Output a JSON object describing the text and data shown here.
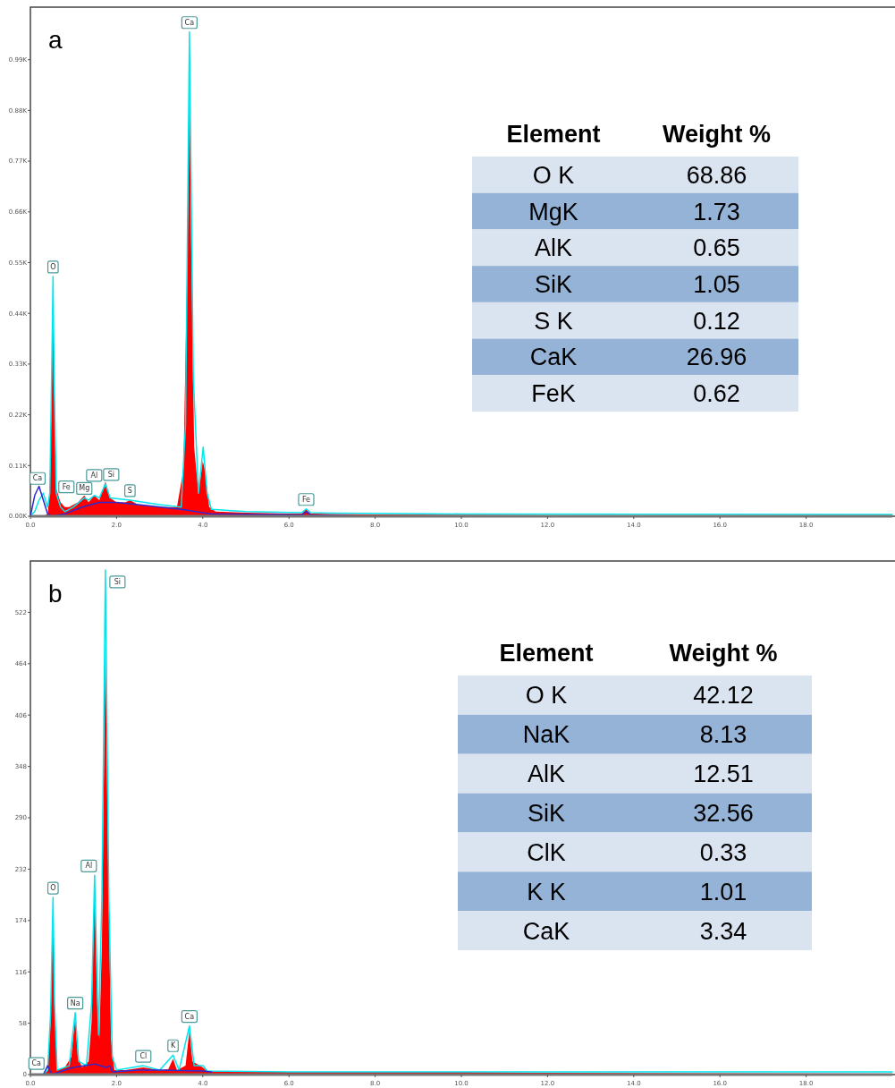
{
  "chart_data": [
    {
      "type": "area",
      "title": "a",
      "xlim": [
        0,
        20
      ],
      "ylim": [
        0,
        1.1
      ],
      "xticks": [
        {
          "value": 0,
          "label": "0.0"
        },
        {
          "value": 2,
          "label": "2.0"
        },
        {
          "value": 4,
          "label": "4.0"
        },
        {
          "value": 6,
          "label": "6.0"
        },
        {
          "value": 8,
          "label": "8.0"
        },
        {
          "value": 10,
          "label": "10.0"
        },
        {
          "value": 12,
          "label": "12.0"
        },
        {
          "value": 14,
          "label": "14.0"
        },
        {
          "value": 16,
          "label": "16.0"
        },
        {
          "value": 18,
          "label": "18.0"
        }
      ],
      "yticks": [
        {
          "value": 0,
          "label": "0.00K"
        },
        {
          "value": 0.11,
          "label": "0.11K"
        },
        {
          "value": 0.22,
          "label": "0.22K"
        },
        {
          "value": 0.33,
          "label": "0.33K"
        },
        {
          "value": 0.44,
          "label": "0.44K"
        },
        {
          "value": 0.55,
          "label": "0.55K"
        },
        {
          "value": 0.66,
          "label": "0.66K"
        },
        {
          "value": 0.77,
          "label": "0.77K"
        },
        {
          "value": 0.88,
          "label": "0.88K"
        },
        {
          "value": 0.99,
          "label": "0.99K"
        }
      ],
      "series": [
        {
          "type": "area",
          "color": "#ff0000",
          "x": [
            0,
            0.3,
            0.4,
            0.45,
            0.5,
            0.525,
            0.55,
            0.6,
            0.7,
            0.8,
            0.9,
            1.0,
            1.1,
            1.25,
            1.35,
            1.48,
            1.6,
            1.74,
            1.85,
            2.0,
            2.2,
            2.31,
            2.5,
            3.0,
            3.4,
            3.55,
            3.65,
            3.69,
            3.73,
            3.8,
            3.9,
            4.0,
            4.05,
            4.15,
            4.3,
            5.0,
            6.0,
            6.3,
            6.4,
            6.5,
            7.0,
            8.0,
            10,
            12,
            14,
            16,
            20
          ],
          "values": [
            0,
            0,
            0.005,
            0.05,
            0.3,
            0.49,
            0.3,
            0.06,
            0.03,
            0.02,
            0.02,
            0.025,
            0.03,
            0.045,
            0.03,
            0.045,
            0.035,
            0.075,
            0.04,
            0.03,
            0.03,
            0.035,
            0.025,
            0.02,
            0.02,
            0.1,
            0.6,
            0.95,
            0.6,
            0.15,
            0.05,
            0.12,
            0.1,
            0.02,
            0.01,
            0.008,
            0.006,
            0.006,
            0.015,
            0.006,
            0.005,
            0.004,
            0.003,
            0.002,
            0.001,
            0.001,
            0.001
          ]
        },
        {
          "type": "line",
          "color": "#00e5ee",
          "x": [
            0,
            0.1,
            0.2,
            0.3,
            0.4,
            0.45,
            0.5,
            0.525,
            0.55,
            0.6,
            0.7,
            0.8,
            1.0,
            1.25,
            1.35,
            1.48,
            1.6,
            1.74,
            1.85,
            2.31,
            3.0,
            3.5,
            3.6,
            3.69,
            3.78,
            3.9,
            4.01,
            4.1,
            4.2,
            5,
            6.3,
            6.4,
            6.5,
            7,
            10,
            20
          ],
          "values": [
            0,
            0.01,
            0.035,
            0.05,
            0.02,
            0.05,
            0.35,
            0.52,
            0.3,
            0.05,
            0.02,
            0.01,
            0.02,
            0.04,
            0.035,
            0.045,
            0.04,
            0.07,
            0.04,
            0.035,
            0.025,
            0.02,
            0.2,
            1.05,
            0.3,
            0.05,
            0.15,
            0.05,
            0.015,
            0.01,
            0.008,
            0.016,
            0.008,
            0.007,
            0.005,
            0.004
          ]
        },
        {
          "type": "line",
          "color": "#2a2ad0",
          "x": [
            0,
            0.1,
            0.2,
            0.3,
            0.4,
            0.5,
            0.8,
            1.2,
            1.6,
            2.0,
            2.5,
            3.5,
            4.2,
            6.3,
            6.4,
            6.5,
            7,
            7.5
          ],
          "values": [
            0,
            0.045,
            0.065,
            0.035,
            0.005,
            0,
            0.005,
            0.02,
            0.03,
            0.03,
            0.025,
            0.015,
            0.005,
            0.003,
            0.01,
            0.003,
            0.002,
            0.001
          ]
        }
      ],
      "annotations": [
        {
          "text": "Ca",
          "x": 0.3,
          "y": 0.05
        },
        {
          "text": "O",
          "x": 0.525,
          "y": 0.52
        },
        {
          "text": "Fe",
          "x": 0.7,
          "y": 0.02
        },
        {
          "text": "Mg",
          "x": 1.25,
          "y": 0.04
        },
        {
          "text": "Al",
          "x": 1.48,
          "y": 0.045
        },
        {
          "text": "Si",
          "x": 1.74,
          "y": 0.07
        },
        {
          "text": "S",
          "x": 2.31,
          "y": 0.035
        },
        {
          "text": "Ca",
          "x": 3.69,
          "y": 1.05
        },
        {
          "text": "Fe",
          "x": 6.4,
          "y": 0.016
        }
      ]
    },
    {
      "type": "other",
      "xlabel": "Element",
      "ylabel": "Weight %",
      "categories": [
        "O K",
        "MgK",
        "AlK",
        "SiK",
        "S K",
        "CaK",
        "FeK"
      ],
      "values": [
        68.86,
        1.73,
        0.65,
        1.05,
        0.12,
        26.96,
        0.62
      ],
      "colors": [
        "#dae3f0",
        "#95b3d7",
        "#dae3f0",
        "#95b3d7",
        "#dae3f0",
        "#95b3d7",
        "#dae3f0"
      ],
      "data_labels": true
    },
    {
      "type": "area",
      "title": "b",
      "xlim": [
        0,
        20
      ],
      "ylim": [
        0,
        580
      ],
      "xticks": [
        {
          "value": 0,
          "label": "0.0"
        },
        {
          "value": 2,
          "label": "2.0"
        },
        {
          "value": 4,
          "label": "4.0"
        },
        {
          "value": 6,
          "label": "6.0"
        },
        {
          "value": 8,
          "label": "8.0"
        },
        {
          "value": 10,
          "label": "10.0"
        },
        {
          "value": 12,
          "label": "12.0"
        },
        {
          "value": 14,
          "label": "14.0"
        },
        {
          "value": 16,
          "label": "16.0"
        },
        {
          "value": 18,
          "label": "18.0"
        }
      ],
      "yticks": [
        0,
        58,
        116,
        174,
        232,
        290,
        348,
        406,
        464,
        522
      ],
      "series": [
        {
          "type": "area",
          "color": "#ff0000",
          "x": [
            0,
            0.3,
            0.4,
            0.47,
            0.525,
            0.56,
            0.62,
            0.8,
            0.95,
            1.04,
            1.1,
            1.2,
            1.35,
            1.42,
            1.49,
            1.55,
            1.6,
            1.66,
            1.74,
            1.8,
            1.87,
            1.95,
            2.2,
            2.62,
            3.0,
            3.2,
            3.31,
            3.4,
            3.6,
            3.69,
            3.76,
            4.0,
            4.1,
            5,
            8,
            10,
            12,
            20
          ],
          "values": [
            0,
            0,
            5,
            60,
            190,
            80,
            5,
            8,
            20,
            65,
            20,
            8,
            15,
            60,
            215,
            80,
            40,
            150,
            490,
            250,
            40,
            5,
            5,
            8,
            5,
            6,
            18,
            5,
            10,
            50,
            15,
            8,
            4,
            3,
            3,
            3,
            2,
            1
          ]
        },
        {
          "type": "line",
          "color": "#00e5ee",
          "x": [
            0,
            0.3,
            0.4,
            0.47,
            0.525,
            0.56,
            0.62,
            0.9,
            1.04,
            1.12,
            1.3,
            1.42,
            1.49,
            1.58,
            1.66,
            1.74,
            1.82,
            1.9,
            2.0,
            2.62,
            3.0,
            3.31,
            3.45,
            3.69,
            3.8,
            4.01,
            4.1,
            6,
            10,
            20
          ],
          "values": [
            0,
            0,
            5,
            70,
            200,
            80,
            5,
            10,
            70,
            15,
            10,
            80,
            225,
            45,
            200,
            570,
            200,
            20,
            5,
            10,
            5,
            22,
            5,
            55,
            10,
            10,
            4,
            3,
            3,
            3
          ]
        },
        {
          "type": "line",
          "color": "#2a2ad0",
          "x": [
            0.3,
            0.4,
            0.5,
            0.8,
            1.0,
            1.5,
            1.75,
            1.85,
            1.9,
            2.5,
            3,
            4.0,
            4.2
          ],
          "values": [
            0,
            10,
            0,
            5,
            8,
            12,
            8,
            10,
            3,
            5,
            5,
            4,
            3
          ]
        }
      ],
      "annotations": [
        {
          "text": "Ca",
          "x": 0.4,
          "y": 5
        },
        {
          "text": "O",
          "x": 0.525,
          "y": 200
        },
        {
          "text": "Na",
          "x": 1.04,
          "y": 70
        },
        {
          "text": "Al",
          "x": 1.49,
          "y": 225
        },
        {
          "text": "Si",
          "x": 1.74,
          "y": 570
        },
        {
          "text": "Cl",
          "x": 2.62,
          "y": 10
        },
        {
          "text": "K",
          "x": 3.31,
          "y": 22
        },
        {
          "text": "Ca",
          "x": 3.69,
          "y": 55
        }
      ]
    },
    {
      "type": "other",
      "xlabel": "Element",
      "ylabel": "Weight %",
      "categories": [
        "O K",
        "NaK",
        "AlK",
        "SiK",
        "ClK",
        "K K",
        "CaK"
      ],
      "values": [
        42.12,
        8.13,
        12.51,
        32.56,
        0.33,
        1.01,
        3.34
      ],
      "colors": [
        "#dae3f0",
        "#95b3d7",
        "#dae3f0",
        "#95b3d7",
        "#dae3f0",
        "#95b3d7",
        "#dae3f0"
      ],
      "data_labels": true
    }
  ]
}
